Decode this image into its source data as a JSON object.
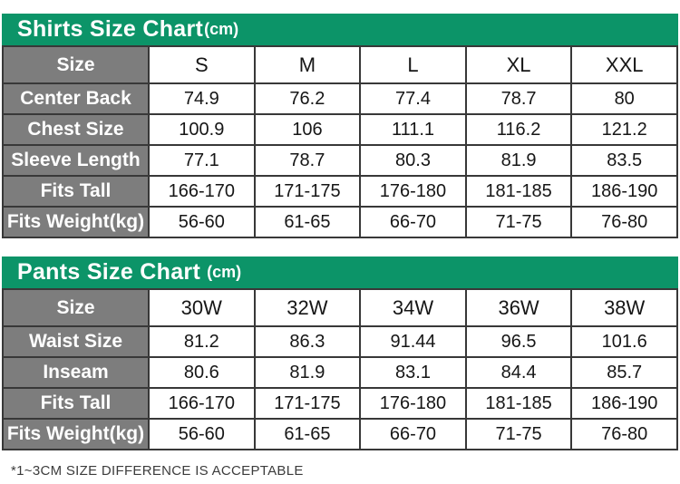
{
  "page": {
    "footnote": "*1~3CM SIZE DIFFERENCE IS ACCEPTABLE"
  },
  "colors": {
    "header_green": "#0c9468",
    "label_gray": "#7d7d7d",
    "border_dark": "#383838",
    "value_text": "#161616",
    "header_text": "#ffffff",
    "footnote_text": "#3c3c3c",
    "cell_bg": "#ffffff"
  },
  "chart_data": [
    {
      "type": "table",
      "title": "Shirts Size Chart",
      "unit": "(cm)",
      "rows": [
        {
          "label": "Size",
          "cells": [
            "S",
            "M",
            "L",
            "XL",
            "XXL"
          ]
        },
        {
          "label": "Center Back",
          "cells": [
            "74.9",
            "76.2",
            "77.4",
            "78.7",
            "80"
          ]
        },
        {
          "label": "Chest Size",
          "cells": [
            "100.9",
            "106",
            "111.1",
            "116.2",
            "121.2"
          ]
        },
        {
          "label": "Sleeve Length",
          "cells": [
            "77.1",
            "78.7",
            "80.3",
            "81.9",
            "83.5"
          ]
        },
        {
          "label": "Fits Tall",
          "cells": [
            "166-170",
            "171-175",
            "176-180",
            "181-185",
            "186-190"
          ]
        },
        {
          "label": "Fits Weight(kg)",
          "cells": [
            "56-60",
            "61-65",
            "66-70",
            "71-75",
            "76-80"
          ]
        }
      ]
    },
    {
      "type": "table",
      "title": "Pants Size Chart",
      "unit": "(cm)",
      "rows": [
        {
          "label": "Size",
          "cells": [
            "30W",
            "32W",
            "34W",
            "36W",
            "38W"
          ]
        },
        {
          "label": "Waist Size",
          "cells": [
            "81.2",
            "86.3",
            "91.44",
            "96.5",
            "101.6"
          ]
        },
        {
          "label": "Inseam",
          "cells": [
            "80.6",
            "81.9",
            "83.1",
            "84.4",
            "85.7"
          ]
        },
        {
          "label": "Fits Tall",
          "cells": [
            "166-170",
            "171-175",
            "176-180",
            "181-185",
            "186-190"
          ]
        },
        {
          "label": "Fits Weight(kg)",
          "cells": [
            "56-60",
            "61-65",
            "66-70",
            "71-75",
            "76-80"
          ]
        }
      ]
    }
  ]
}
